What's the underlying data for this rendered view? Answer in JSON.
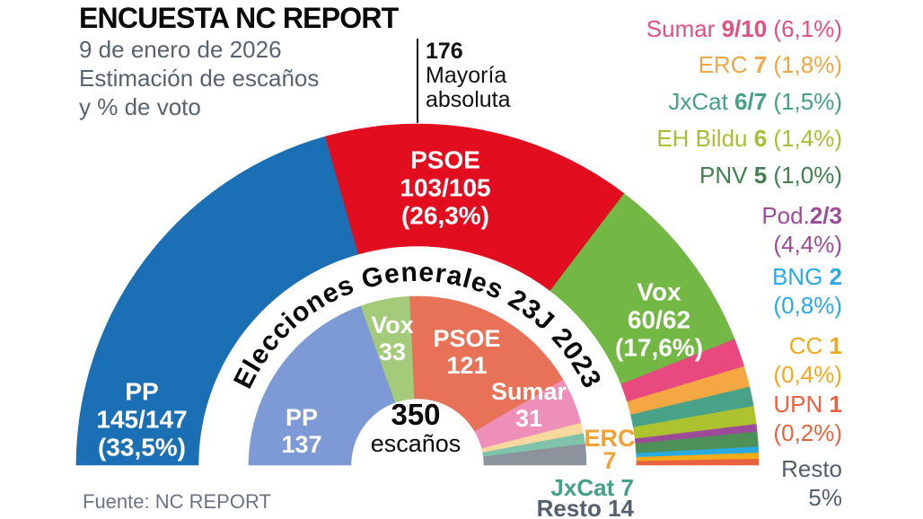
{
  "header": {
    "title": "ENCUESTA NC REPORT",
    "subtitle_lines": [
      "9 de enero de 2026",
      "Estimación de escaños",
      "y % de voto"
    ]
  },
  "footer": {
    "text": "Fuente: NC REPORT"
  },
  "chart_data": {
    "type": "pie",
    "variant": "half-donut hemicycle, two concentric rings",
    "total_seats": 350,
    "majority": {
      "seats": "176",
      "label1": "Mayoría",
      "label2": "absoluta"
    },
    "center": {
      "total": "350",
      "unit": "escaños"
    },
    "outer_ring": {
      "title": "Encuesta NC REPORT — 9 de enero de 2026 (estimación de escaños y % de voto)",
      "segments": [
        {
          "party": "PP",
          "seats_label": "145/147",
          "seats_mid": 146,
          "vote_pct": "(33,5%)",
          "color": "#1b70b5"
        },
        {
          "party": "PSOE",
          "seats_label": "103/105",
          "seats_mid": 104,
          "vote_pct": "(26,3%)",
          "color": "#e30d20"
        },
        {
          "party": "Vox",
          "seats_label": "60/62",
          "seats_mid": 61,
          "vote_pct": "(17,6%)",
          "color": "#73b844"
        },
        {
          "party": "Sumar",
          "seats_label": "9/10",
          "seats_mid": 9.5,
          "vote_pct": "(6,1%)",
          "color": "#e84a80"
        },
        {
          "party": "ERC",
          "seats_label": "7",
          "seats_mid": 7,
          "vote_pct": "(1,8%)",
          "color": "#f4a743"
        },
        {
          "party": "JxCat",
          "seats_label": "6/7",
          "seats_mid": 6.5,
          "vote_pct": "(1,5%)",
          "color": "#47a287"
        },
        {
          "party": "EH Bildu",
          "seats_label": "6",
          "seats_mid": 6,
          "vote_pct": "(1,4%)",
          "color": "#acc32f"
        },
        {
          "party": "Pod.",
          "seats_label": "2/3",
          "seats_mid": 2.5,
          "vote_pct": "(4,4%)",
          "color": "#9c4b99"
        },
        {
          "party": "PNV",
          "seats_label": "5",
          "seats_mid": 5,
          "vote_pct": "(1,0%)",
          "color": "#4e9158"
        },
        {
          "party": "BNG",
          "seats_label": "2",
          "seats_mid": 2,
          "vote_pct": "(0,8%)",
          "color": "#29abe2"
        },
        {
          "party": "CC",
          "seats_label": "1",
          "seats_mid": 1,
          "vote_pct": "(0,4%)",
          "color": "#f2ab19"
        },
        {
          "party": "UPN",
          "seats_label": "1",
          "seats_mid": 1,
          "vote_pct": "(0,2%)",
          "color": "#e8623f"
        }
      ],
      "resto_vote_pct": "5%"
    },
    "inner_ring": {
      "title": "Elecciones Generales 23J 2023",
      "segments": [
        {
          "party": "PP",
          "seats_label": "137",
          "seats": 137,
          "color": "#7d99d6"
        },
        {
          "party": "Vox",
          "seats_label": "33",
          "seats": 33,
          "color": "#a3cb79"
        },
        {
          "party": "PSOE",
          "seats_label": "121",
          "seats": 121,
          "color": "#e87257"
        },
        {
          "party": "Sumar",
          "seats_label": "31",
          "seats": 31,
          "color": "#ee8fb9"
        },
        {
          "party": "ERC",
          "seats_label": "7",
          "seats": 7,
          "color": "#f7d99e"
        },
        {
          "party": "JxCat",
          "seats_label": "7",
          "seats": 7,
          "color": "#7fc3ab"
        },
        {
          "party": "Resto",
          "seats_label": "14",
          "seats": 14,
          "color": "#8d939c"
        }
      ]
    }
  },
  "under_labels": {
    "erc_color": "#f0a236",
    "jxcat_color": "#43a185",
    "resto_color": "#55606e"
  },
  "legend": {
    "items": [
      {
        "label": "Sumar",
        "seats": "9/10",
        "pct": "(6,1%)",
        "color": "#e2507e",
        "lines": 1,
        "joiner": " "
      },
      {
        "label": "ERC",
        "seats": "7",
        "pct": "(1,8%)",
        "color": "#f2a644",
        "lines": 1,
        "joiner": " "
      },
      {
        "label": "JxCat",
        "seats": "6/7",
        "pct": "(1,5%)",
        "color": "#43a185",
        "lines": 1,
        "joiner": " "
      },
      {
        "label": "EH Bildu",
        "seats": "6",
        "pct": "(1,4%)",
        "color": "#a8bf33",
        "lines": 1,
        "joiner": " "
      },
      {
        "label": "PNV",
        "seats": "5",
        "pct": "(1,0%)",
        "color": "#417f4e",
        "lines": 1,
        "joiner": " "
      },
      {
        "label": "Pod.",
        "seats": "2/3",
        "pct": "(4,4%)",
        "color": "#9c4b99",
        "lines": 2,
        "joiner": ""
      },
      {
        "label": "BNG",
        "seats": "2",
        "pct": "(0,8%)",
        "color": "#29abe2",
        "lines": 2,
        "joiner": " "
      },
      {
        "label": "CC",
        "seats": "1",
        "pct": "(0,4%)",
        "color": "#f0a91c",
        "lines": 2,
        "joiner": " "
      },
      {
        "label": "UPN",
        "seats": "1",
        "pct": "(0,2%)",
        "color": "#e8623f",
        "lines": 2,
        "joiner": " "
      },
      {
        "label": "Resto",
        "seats": "",
        "pct": "5%",
        "color": "#55606e",
        "lines": 2,
        "joiner": ""
      }
    ]
  }
}
